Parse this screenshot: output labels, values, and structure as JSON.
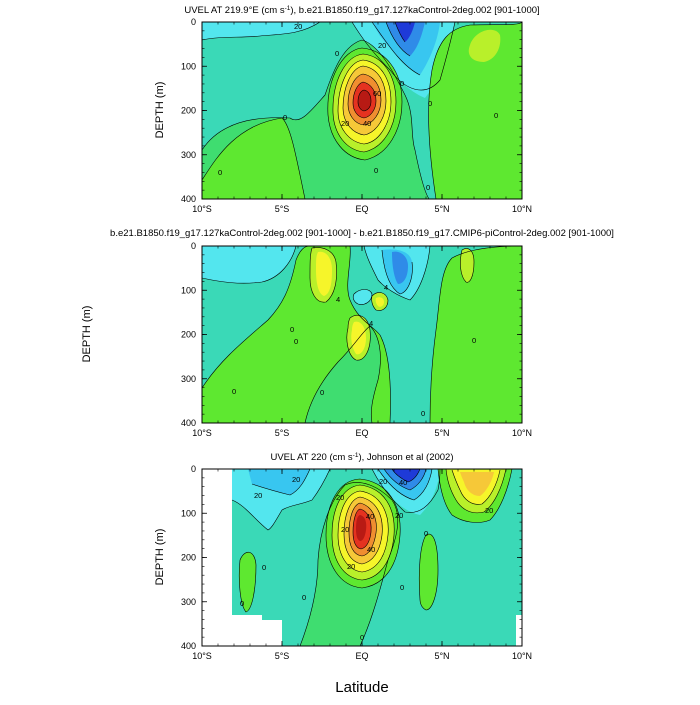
{
  "chart_data": [
    {
      "type": "contour",
      "title": "UVEL AT 219.9°E (cm s",
      "title_sup": "-1",
      "title_rest": "), b.e21.B1850.f19_g17.127kaControl-2deg.002 [901-1000]",
      "xlabel": "",
      "ylabel": "DEPTH (m)",
      "x_ticks": [
        "10°S",
        "5°S",
        "EQ",
        "5°N",
        "10°N"
      ],
      "x_range": [
        -10,
        10
      ],
      "y_ticks": [
        "0",
        "100",
        "200",
        "300",
        "400"
      ],
      "y_range": [
        400,
        0
      ],
      "contour_labels": [
        "20",
        "0",
        "20",
        "0",
        "60",
        "20",
        "40",
        "0",
        "0",
        "0",
        "0",
        "0",
        "0"
      ],
      "core_max_approx": 100
    },
    {
      "type": "contour",
      "title": "b.e21.B1850.f19_g17.127kaControl-2deg.002 [901-1000] - b.e21.B1850.f19_g17.CMIP6-piControl-2deg.002 [901-1000]",
      "xlabel": "",
      "ylabel": "DEPTH (m)",
      "x_ticks": [
        "10°S",
        "5°S",
        "EQ",
        "5°N",
        "10°N"
      ],
      "x_range": [
        -10,
        10
      ],
      "y_ticks": [
        "0",
        "100",
        "200",
        "300",
        "400"
      ],
      "y_range": [
        400,
        0
      ],
      "contour_labels": [
        "4",
        "4",
        "4",
        "0",
        "0",
        "0",
        "0",
        "0",
        "0"
      ]
    },
    {
      "type": "contour",
      "title": "UVEL AT 220 (cm s",
      "title_sup": "-1",
      "title_rest": "), Johnson et al (2002)",
      "xlabel": "Latitude",
      "ylabel": "DEPTH (m)",
      "x_ticks": [
        "10°S",
        "5°S",
        "EQ",
        "5°N",
        "10°N"
      ],
      "x_range": [
        -10,
        10
      ],
      "y_ticks": [
        "0",
        "100",
        "200",
        "300",
        "400"
      ],
      "y_range": [
        400,
        0
      ],
      "contour_labels": [
        "20",
        "20",
        "20",
        "20",
        "40",
        "20",
        "20",
        "40",
        "40",
        "20",
        "20",
        "0",
        "0",
        "0",
        "0",
        "0",
        "0"
      ],
      "core_max_approx": 100
    }
  ],
  "colors": {
    "neg_deep": "#1e3ad8",
    "neg_mid": "#2f8be8",
    "neg_light": "#38c6f0",
    "neg_pale": "#53e6ee",
    "near_zero": "#3ad9b7",
    "pos_pale": "#3fdd70",
    "pos_green": "#5ee830",
    "pos_lime": "#b9f02a",
    "pos_yellow": "#f6f52a",
    "pos_gold": "#f6c838",
    "pos_orange": "#f08e30",
    "pos_red": "#e53220",
    "pos_dark": "#b81a14"
  }
}
